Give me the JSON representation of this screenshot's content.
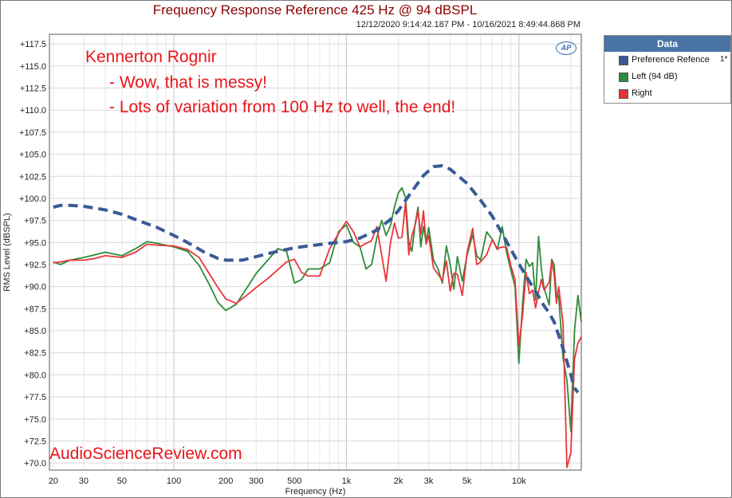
{
  "chart_data": {
    "type": "line",
    "title": "Frequency Response Reference 425 Hz @ 94 dBSPL",
    "subtitle": "12/12/2020 9:14:42.187 PM - 10/16/2021 8:49:44.868 PM",
    "xlabel": "Frequency (Hz)",
    "ylabel": "RMS Level (dBSPL)",
    "x_scale": "log",
    "xlim": [
      19,
      23000
    ],
    "ylim": [
      69.2,
      118.6
    ],
    "grid": true,
    "legend_position": "right",
    "legend_title": "Data",
    "x_ticks": [
      20,
      30,
      50,
      100,
      200,
      300,
      500,
      1000,
      2000,
      3000,
      5000,
      10000
    ],
    "x_tick_labels": [
      "20",
      "30",
      "50",
      "100",
      "200",
      "300",
      "500",
      "1k",
      "2k",
      "3k",
      "5k",
      "10k"
    ],
    "y_ticks": [
      70,
      72.5,
      75,
      77.5,
      80,
      82.5,
      85,
      87.5,
      90,
      92.5,
      95,
      97.5,
      100,
      102.5,
      105,
      107.5,
      110,
      112.5,
      115,
      117.5
    ],
    "y_tick_labels": [
      "+70.0",
      "+72.5",
      "+75.0",
      "+77.5",
      "+80.0",
      "+82.5",
      "+85.0",
      "+87.5",
      "+90.0",
      "+92.5",
      "+95.0",
      "+97.5",
      "+100.0",
      "+102.5",
      "+105.0",
      "+107.5",
      "+110.0",
      "+112.5",
      "+115.0",
      "+117.5"
    ],
    "series": [
      {
        "name": "Preference Refence",
        "marker": "1*",
        "color": "#3b5a96",
        "style": "dashed",
        "points": [
          [
            20,
            99.0
          ],
          [
            22,
            99.2
          ],
          [
            25,
            99.2
          ],
          [
            30,
            99.1
          ],
          [
            40,
            98.7
          ],
          [
            50,
            98.2
          ],
          [
            60,
            97.6
          ],
          [
            80,
            96.7
          ],
          [
            100,
            95.8
          ],
          [
            120,
            95.0
          ],
          [
            150,
            93.9
          ],
          [
            180,
            93.2
          ],
          [
            200,
            93.0
          ],
          [
            250,
            93.0
          ],
          [
            300,
            93.4
          ],
          [
            400,
            94.0
          ],
          [
            500,
            94.4
          ],
          [
            600,
            94.6
          ],
          [
            800,
            94.9
          ],
          [
            1000,
            95.1
          ],
          [
            1200,
            95.5
          ],
          [
            1500,
            96.4
          ],
          [
            1800,
            97.6
          ],
          [
            2000,
            98.6
          ],
          [
            2400,
            100.8
          ],
          [
            2800,
            102.6
          ],
          [
            3200,
            103.6
          ],
          [
            3600,
            103.7
          ],
          [
            4000,
            103.3
          ],
          [
            5000,
            101.7
          ],
          [
            6000,
            99.8
          ],
          [
            7000,
            98.0
          ],
          [
            8000,
            96.0
          ],
          [
            9000,
            94.2
          ],
          [
            10000,
            92.6
          ],
          [
            11000,
            91.2
          ],
          [
            12000,
            90.0
          ],
          [
            13000,
            88.9
          ],
          [
            14000,
            87.8
          ],
          [
            15000,
            87.0
          ],
          [
            16000,
            86.0
          ],
          [
            17000,
            84.5
          ],
          [
            18000,
            83.0
          ],
          [
            19000,
            81.5
          ],
          [
            20000,
            80.0
          ],
          [
            21000,
            78.5
          ],
          [
            22000,
            78.0
          ]
        ]
      },
      {
        "name": "Left (94 dB)",
        "color": "#2e8b3a",
        "style": "solid",
        "points": [
          [
            20,
            92.8
          ],
          [
            22,
            92.5
          ],
          [
            25,
            93.0
          ],
          [
            30,
            93.3
          ],
          [
            35,
            93.6
          ],
          [
            40,
            93.9
          ],
          [
            50,
            93.5
          ],
          [
            60,
            94.3
          ],
          [
            70,
            95.1
          ],
          [
            80,
            94.9
          ],
          [
            100,
            94.5
          ],
          [
            120,
            94.0
          ],
          [
            140,
            92.4
          ],
          [
            160,
            90.3
          ],
          [
            180,
            88.2
          ],
          [
            200,
            87.3
          ],
          [
            230,
            88.0
          ],
          [
            260,
            89.6
          ],
          [
            300,
            91.5
          ],
          [
            350,
            93.0
          ],
          [
            400,
            94.3
          ],
          [
            450,
            94.0
          ],
          [
            500,
            90.4
          ],
          [
            550,
            90.8
          ],
          [
            600,
            92.0
          ],
          [
            700,
            92.0
          ],
          [
            800,
            92.7
          ],
          [
            900,
            96.2
          ],
          [
            1000,
            97.0
          ],
          [
            1100,
            95.0
          ],
          [
            1200,
            94.5
          ],
          [
            1300,
            92.0
          ],
          [
            1400,
            92.5
          ],
          [
            1500,
            95.5
          ],
          [
            1600,
            97.5
          ],
          [
            1700,
            95.8
          ],
          [
            1800,
            96.9
          ],
          [
            1900,
            99.0
          ],
          [
            2000,
            100.6
          ],
          [
            2100,
            101.2
          ],
          [
            2200,
            100.1
          ],
          [
            2300,
            95.0
          ],
          [
            2400,
            94.0
          ],
          [
            2500,
            97.0
          ],
          [
            2600,
            99.0
          ],
          [
            2700,
            94.5
          ],
          [
            2800,
            96.8
          ],
          [
            2900,
            95.0
          ],
          [
            3000,
            96.7
          ],
          [
            3200,
            93.0
          ],
          [
            3400,
            92.0
          ],
          [
            3600,
            90.4
          ],
          [
            3800,
            94.6
          ],
          [
            4000,
            92.5
          ],
          [
            4200,
            89.7
          ],
          [
            4400,
            93.4
          ],
          [
            4700,
            90.6
          ],
          [
            5000,
            93.5
          ],
          [
            5400,
            95.9
          ],
          [
            5700,
            93.5
          ],
          [
            6000,
            93.0
          ],
          [
            6500,
            96.2
          ],
          [
            7000,
            95.4
          ],
          [
            7500,
            94.2
          ],
          [
            8000,
            96.8
          ],
          [
            8500,
            93.8
          ],
          [
            9000,
            91.8
          ],
          [
            9500,
            90.0
          ],
          [
            10000,
            81.3
          ],
          [
            10500,
            88.0
          ],
          [
            11000,
            93.1
          ],
          [
            11500,
            92.3
          ],
          [
            12000,
            92.7
          ],
          [
            12500,
            88.5
          ],
          [
            13000,
            95.7
          ],
          [
            13500,
            92.0
          ],
          [
            14000,
            89.8
          ],
          [
            15000,
            87.9
          ],
          [
            15500,
            93.1
          ],
          [
            16000,
            92.5
          ],
          [
            16500,
            89.0
          ],
          [
            17000,
            89.0
          ],
          [
            18000,
            82.0
          ],
          [
            19000,
            79.4
          ],
          [
            20000,
            73.6
          ],
          [
            21000,
            85.0
          ],
          [
            22000,
            89.0
          ],
          [
            23000,
            86.0
          ]
        ]
      },
      {
        "name": "Right",
        "color": "#e8353a",
        "style": "solid",
        "points": [
          [
            20,
            92.7
          ],
          [
            22,
            92.8
          ],
          [
            25,
            93.0
          ],
          [
            30,
            93.0
          ],
          [
            35,
            93.2
          ],
          [
            40,
            93.5
          ],
          [
            50,
            93.3
          ],
          [
            60,
            93.9
          ],
          [
            70,
            94.8
          ],
          [
            80,
            94.7
          ],
          [
            100,
            94.6
          ],
          [
            120,
            94.2
          ],
          [
            140,
            93.3
          ],
          [
            160,
            91.5
          ],
          [
            180,
            89.9
          ],
          [
            200,
            88.6
          ],
          [
            230,
            88.1
          ],
          [
            260,
            88.9
          ],
          [
            300,
            89.9
          ],
          [
            350,
            90.9
          ],
          [
            400,
            91.9
          ],
          [
            450,
            92.8
          ],
          [
            500,
            93.1
          ],
          [
            550,
            91.6
          ],
          [
            600,
            91.2
          ],
          [
            700,
            91.2
          ],
          [
            800,
            94.3
          ],
          [
            900,
            96.0
          ],
          [
            1000,
            97.4
          ],
          [
            1100,
            96.2
          ],
          [
            1200,
            94.5
          ],
          [
            1300,
            94.9
          ],
          [
            1400,
            95.2
          ],
          [
            1500,
            96.8
          ],
          [
            1600,
            93.6
          ],
          [
            1700,
            90.6
          ],
          [
            1800,
            94.9
          ],
          [
            1900,
            97.2
          ],
          [
            2000,
            95.5
          ],
          [
            2100,
            95.6
          ],
          [
            2200,
            99.5
          ],
          [
            2300,
            93.6
          ],
          [
            2400,
            95.8
          ],
          [
            2500,
            96.9
          ],
          [
            2600,
            98.6
          ],
          [
            2700,
            95.9
          ],
          [
            2800,
            98.6
          ],
          [
            2900,
            94.8
          ],
          [
            3000,
            95.8
          ],
          [
            3200,
            92.1
          ],
          [
            3400,
            91.4
          ],
          [
            3600,
            90.7
          ],
          [
            3800,
            92.9
          ],
          [
            4000,
            89.5
          ],
          [
            4200,
            91.5
          ],
          [
            4400,
            91.4
          ],
          [
            4700,
            89.0
          ],
          [
            5000,
            93.8
          ],
          [
            5400,
            96.6
          ],
          [
            5700,
            92.5
          ],
          [
            6000,
            92.8
          ],
          [
            6500,
            93.6
          ],
          [
            7000,
            95.3
          ],
          [
            7500,
            94.3
          ],
          [
            8000,
            94.5
          ],
          [
            8500,
            94.4
          ],
          [
            9000,
            92.3
          ],
          [
            9500,
            90.8
          ],
          [
            10000,
            83.3
          ],
          [
            10500,
            86.7
          ],
          [
            11000,
            91.6
          ],
          [
            11500,
            89.2
          ],
          [
            12000,
            89.6
          ],
          [
            12500,
            87.6
          ],
          [
            13000,
            89.4
          ],
          [
            13500,
            90.8
          ],
          [
            14000,
            89.6
          ],
          [
            15000,
            90.5
          ],
          [
            15500,
            92.9
          ],
          [
            16000,
            91.4
          ],
          [
            16500,
            88.1
          ],
          [
            17000,
            90.0
          ],
          [
            18000,
            86.0
          ],
          [
            19000,
            69.5
          ],
          [
            20000,
            71.2
          ],
          [
            21000,
            81.8
          ],
          [
            22000,
            83.6
          ],
          [
            23000,
            84.3
          ]
        ]
      }
    ],
    "annotations": [
      "Kennerton Rognir",
      "- Wow, that is messy!",
      "- Lots of variation from 100 Hz to well, the end!"
    ],
    "watermark": "AudioScienceReview.com",
    "logo_text": "AP"
  }
}
